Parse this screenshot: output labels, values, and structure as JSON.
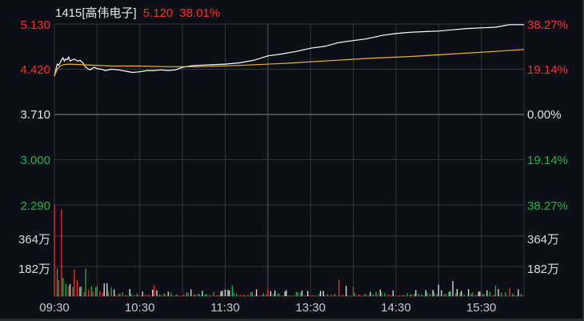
{
  "header": {
    "code_name": "1415[高伟电子]",
    "price": "5.120",
    "change_pct": "38.01%"
  },
  "colors": {
    "background": "#0c0f15",
    "grid": "#33363c",
    "up": "#ff2a2a",
    "down": "#1fb24a",
    "neutral": "#e6e6e6",
    "price_line": "#ffffff",
    "avg_line": "#f0b428"
  },
  "price_axis_left": [
    {
      "label": "5.130",
      "color": "up"
    },
    {
      "label": "4.420",
      "color": "up"
    },
    {
      "label": "3.710",
      "color": "neutral"
    },
    {
      "label": "3.000",
      "color": "down"
    },
    {
      "label": "2.290",
      "color": "down"
    }
  ],
  "pct_axis_right": [
    {
      "label": "38.27%",
      "color": "up"
    },
    {
      "label": "19.14%",
      "color": "up"
    },
    {
      "label": "0.00%",
      "color": "neutral"
    },
    {
      "label": "19.14%",
      "color": "down"
    },
    {
      "label": "38.27%",
      "color": "down"
    }
  ],
  "volume_axis": [
    "364万",
    "182万"
  ],
  "time_axis": [
    "09:30",
    "10:30",
    "11:30",
    "13:30",
    "14:30",
    "15:30"
  ],
  "chart_data": {
    "type": "line",
    "title": "1415[高伟电子] intraday 5.120 38.01%",
    "prev_close": 3.71,
    "ylim": [
      2.29,
      5.13
    ],
    "x_labels": [
      "09:30",
      "10:30",
      "11:30",
      "13:30",
      "14:30",
      "15:30"
    ],
    "series": [
      {
        "name": "price",
        "x": [
          0,
          1,
          2,
          3,
          4,
          5,
          6,
          7,
          8,
          9,
          10,
          11,
          12,
          14,
          16,
          18,
          20,
          22,
          25,
          28,
          30,
          33,
          36,
          40,
          45,
          50,
          55,
          60,
          65,
          70,
          75,
          80,
          85,
          90,
          95,
          100,
          110,
          120,
          130,
          140,
          150,
          160,
          170,
          180,
          190,
          200,
          210,
          220,
          230,
          240,
          250,
          260,
          270,
          280,
          290,
          300,
          310,
          320,
          330
        ],
        "values": [
          4.31,
          4.41,
          4.5,
          4.48,
          4.52,
          4.57,
          4.6,
          4.55,
          4.58,
          4.57,
          4.61,
          4.55,
          4.56,
          4.58,
          4.55,
          4.56,
          4.52,
          4.45,
          4.41,
          4.45,
          4.43,
          4.42,
          4.4,
          4.42,
          4.41,
          4.39,
          4.37,
          4.38,
          4.4,
          4.4,
          4.41,
          4.4,
          4.41,
          4.45,
          4.47,
          4.48,
          4.49,
          4.5,
          4.52,
          4.56,
          4.63,
          4.66,
          4.7,
          4.75,
          4.78,
          4.84,
          4.87,
          4.9,
          4.95,
          4.98,
          5.0,
          5.01,
          5.02,
          5.04,
          5.06,
          5.07,
          5.08,
          5.12,
          5.12
        ]
      },
      {
        "name": "avg",
        "x": [
          0,
          2,
          4,
          6,
          10,
          20,
          40,
          60,
          80,
          100,
          130,
          160,
          190,
          220,
          250,
          280,
          310,
          330
        ],
        "values": [
          4.32,
          4.42,
          4.47,
          4.49,
          4.5,
          4.49,
          4.47,
          4.47,
          4.46,
          4.46,
          4.48,
          4.51,
          4.55,
          4.59,
          4.62,
          4.66,
          4.7,
          4.73
        ]
      }
    ],
    "volume_ylim": [
      0,
      546
    ],
    "volume_unit": "万",
    "volume_ticks": [
      182,
      364
    ],
    "grid": true,
    "n_points": 330
  }
}
